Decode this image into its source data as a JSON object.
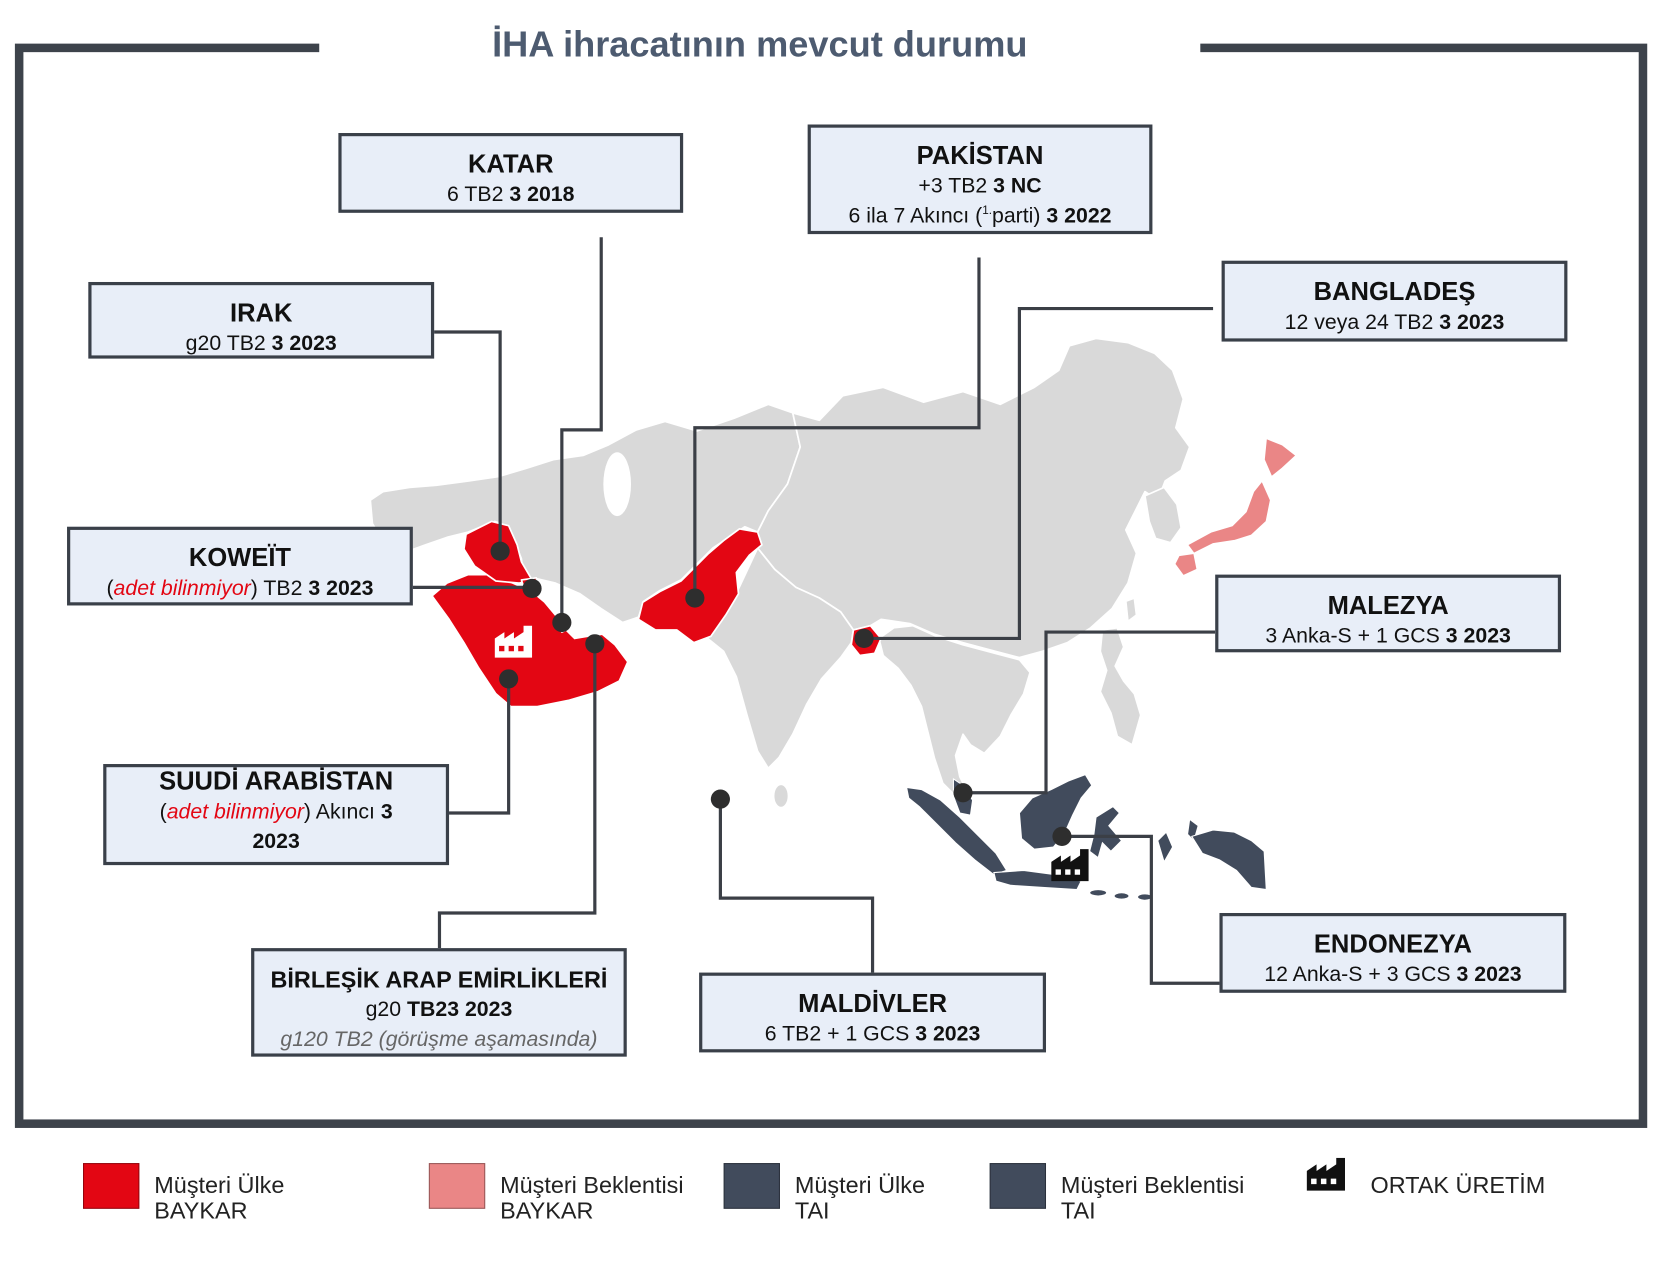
{
  "title": "İHA ihracatının mevcut durumu",
  "boxes": {
    "katar": {
      "name": "KATAR",
      "l1_text": "6 TB2",
      "l1_bold": "3 2018"
    },
    "pakistan": {
      "name": "PAKİSTAN",
      "l1_text": "+3 TB2",
      "l1_bold": "3 NC",
      "l2_text": "6 ila 7 Akıncı (",
      "l2_sup": "1.",
      "l2_text2": "parti)",
      "l2_bold": "3 2022"
    },
    "banglades": {
      "name": "BANGLADEŞ",
      "l1_text": "12 veya 24 TB2",
      "l1_bold": "3 2023"
    },
    "irak": {
      "name": "IRAK",
      "l1_text": "g20 TB2",
      "l1_bold": "3 2023"
    },
    "koweit": {
      "name": "KOWEÏT",
      "l1_open": "(",
      "l1_note": "adet bilinmiyor",
      "l1_text": ") TB2",
      "l1_bold": "3 2023"
    },
    "malezya": {
      "name": "MALEZYA",
      "l1_text": "3 Anka-S + 1 GCS",
      "l1_bold": "3 2023"
    },
    "suudi": {
      "name": "SUUDİ ARABİSTAN",
      "l1_open": "(",
      "l1_note": "adet bilinmiyor",
      "l1_text": ") Akıncı",
      "l1_bold": "3",
      "l2_bold": "2023"
    },
    "bae": {
      "name": "BİRLEŞİK ARAP EMİRLİKLERİ",
      "l1_text": "g20",
      "l1_bold": "TB23 2023",
      "l2_note": "g120 TB2 (görüşme aşamasında)"
    },
    "maldivler": {
      "name": "MALDİVLER",
      "l1_text": "6 TB2 + 1 GCS",
      "l1_bold": "3 2023"
    },
    "endonezya": {
      "name": "ENDONEZYA",
      "l1_text": "12 Anka-S + 3 GCS",
      "l1_bold": "3 2023"
    }
  },
  "legend": {
    "items": [
      {
        "line1": "Müşteri Ülke",
        "line2": "BAYKAR"
      },
      {
        "line1": "Müşteri Beklentisi",
        "line2": "BAYKAR"
      },
      {
        "line1": "Müşteri Ülke",
        "line2": "TAI"
      },
      {
        "line1": "Müşteri Beklentisi",
        "line2": "TAI"
      }
    ],
    "joint_production": "ORTAK ÜRETİM",
    "joint_production_icon": "factory-icon"
  },
  "colors": {
    "frame": "#3d434b",
    "title": "#4d5b70",
    "box_fill": "#e8eef8",
    "box_border": "#3a4049",
    "land": "#d9d9d9",
    "baykar_customer": "#e30613",
    "baykar_prospect": "#ea8686",
    "tai_customer": "#414b5c",
    "tai_prospect": "#414b5c",
    "connector": "#3b3f46",
    "highlight_red": "#e30613",
    "note_gray": "#666666"
  }
}
